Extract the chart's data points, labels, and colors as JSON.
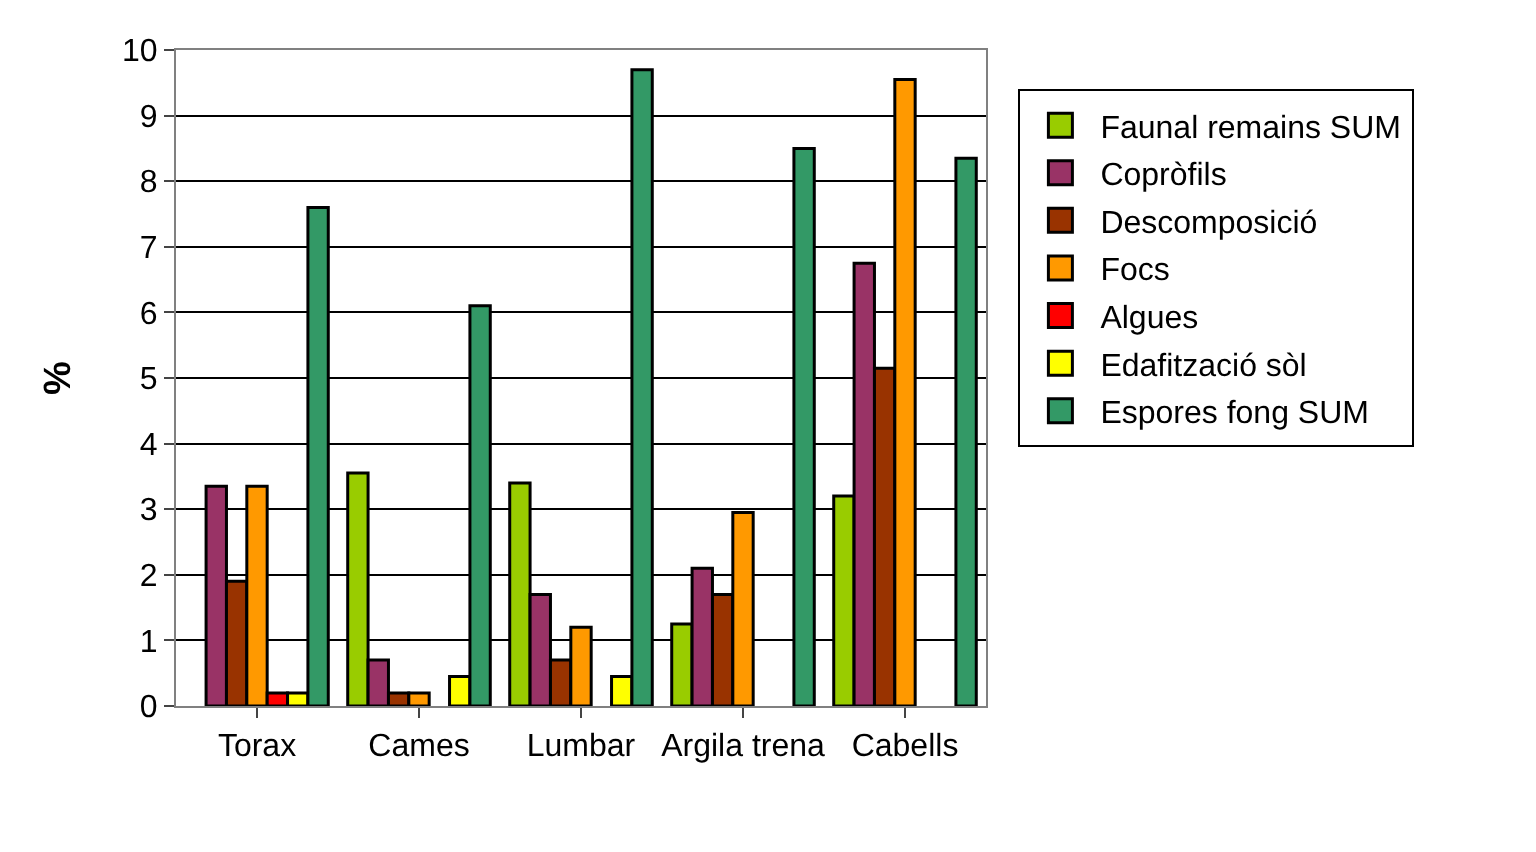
{
  "chart_data": {
    "type": "bar",
    "ylabel": "%",
    "categories": [
      "Torax",
      "Cames",
      "Lumbar",
      "Argila trena",
      "Cabells"
    ],
    "series": [
      {
        "name": "Faunal remains SUM",
        "color": "#99cc00",
        "values": [
          null,
          3.55,
          3.4,
          1.25,
          3.2
        ]
      },
      {
        "name": "Copròfils",
        "color": "#993366",
        "values": [
          3.35,
          0.7,
          1.7,
          2.1,
          6.75
        ]
      },
      {
        "name": "Descomposició",
        "color": "#993300",
        "values": [
          1.9,
          0.2,
          0.7,
          1.7,
          5.15
        ]
      },
      {
        "name": "Focs",
        "color": "#ff9900",
        "values": [
          3.35,
          0.2,
          1.2,
          2.95,
          9.55
        ]
      },
      {
        "name": "Algues",
        "color": "#ff0000",
        "values": [
          0.2,
          null,
          null,
          null,
          null
        ]
      },
      {
        "name": "Edafització sòl",
        "color": "#ffff00",
        "values": [
          0.2,
          0.45,
          0.45,
          null,
          null
        ]
      },
      {
        "name": "Espores fong SUM",
        "color": "#339966",
        "values": [
          7.6,
          6.1,
          9.7,
          8.5,
          8.35
        ]
      }
    ],
    "ylim": [
      0,
      10
    ],
    "yticks": [
      0,
      1,
      2,
      3,
      4,
      5,
      6,
      7,
      8,
      9,
      10
    ],
    "grid": "y",
    "legend": "right"
  }
}
